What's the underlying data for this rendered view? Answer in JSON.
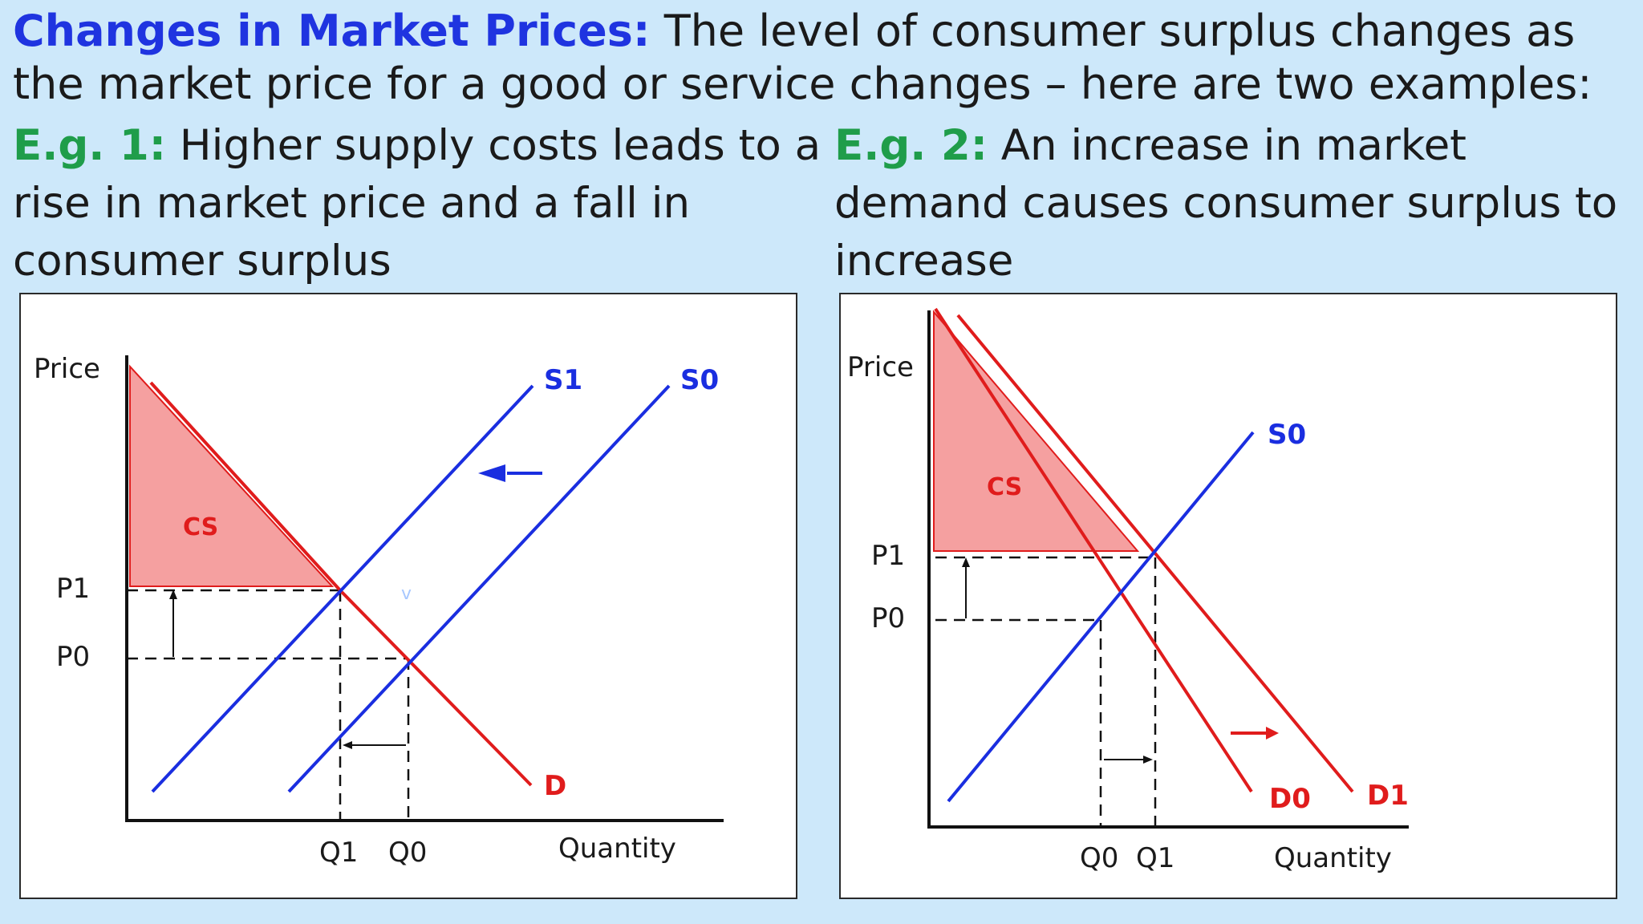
{
  "header": {
    "lead": "Changes in Market Prices:",
    "text": " The level of consumer surplus changes as the market price for a good or service changes – here are two examples:"
  },
  "examples": [
    {
      "lead": "E.g. 1:",
      "text": " Higher supply costs leads to a rise in market price and a fall in consumer surplus"
    },
    {
      "lead": "E.g. 2:",
      "text": " An increase in market demand causes consumer surplus to increase"
    }
  ],
  "colors": {
    "header_lead": "#1f34e0",
    "example_lead": "#1f9d4a",
    "supply": "#1a2ee0",
    "demand": "#e01c1c",
    "cs_fill": "#f5a0a0",
    "background": "#cde8fa"
  },
  "diagram1": {
    "y_axis_label": "Price",
    "x_axis_label": "Quantity",
    "supply_new_label": "S1",
    "supply_old_label": "S0",
    "demand_label": "D",
    "cs_label": "CS",
    "price_new_label": "P1",
    "price_old_label": "P0",
    "qty_new_label": "Q1",
    "qty_old_label": "Q0",
    "stray_mark": "v"
  },
  "diagram2": {
    "y_axis_label": "Price",
    "x_axis_label": "Quantity",
    "supply_label": "S0",
    "demand_old_label": "D0",
    "demand_new_label": "D1",
    "cs_label": "CS",
    "price_new_label": "P1",
    "price_old_label": "P0",
    "qty_old_label": "Q0",
    "qty_new_label": "Q1"
  }
}
